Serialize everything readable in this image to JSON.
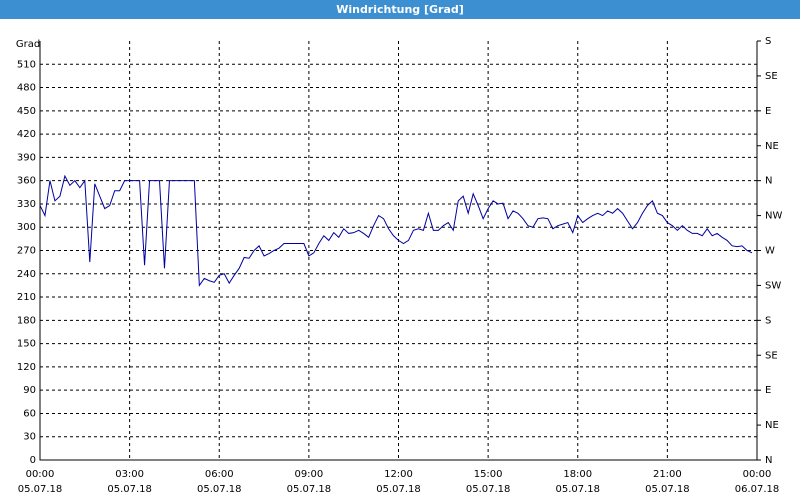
{
  "chart_data": {
    "type": "line",
    "title": "Windrichtung [Grad]",
    "y_label": "Grad",
    "xlim": [
      0,
      1440
    ],
    "xticks": [
      {
        "value": 0,
        "label": "00:00",
        "date": "05.07.18"
      },
      {
        "value": 180,
        "label": "03:00",
        "date": "05.07.18"
      },
      {
        "value": 360,
        "label": "06:00",
        "date": "05.07.18"
      },
      {
        "value": 540,
        "label": "09:00",
        "date": "05.07.18"
      },
      {
        "value": 720,
        "label": "12:00",
        "date": "05.07.18"
      },
      {
        "value": 900,
        "label": "15:00",
        "date": "05.07.18"
      },
      {
        "value": 1080,
        "label": "18:00",
        "date": "05.07.18"
      },
      {
        "value": 1260,
        "label": "21:00",
        "date": "05.07.18"
      },
      {
        "value": 1440,
        "label": "00:00",
        "date": "06.07.18"
      }
    ],
    "ylim": [
      0,
      540
    ],
    "yticks": [
      0,
      30,
      60,
      90,
      120,
      150,
      180,
      210,
      240,
      270,
      300,
      330,
      360,
      390,
      420,
      450,
      480,
      510
    ],
    "y2lim": [
      0,
      540
    ],
    "y2ticks": [
      {
        "value": 0,
        "label": "N"
      },
      {
        "value": 45,
        "label": "NE"
      },
      {
        "value": 90,
        "label": "E"
      },
      {
        "value": 135,
        "label": "SE"
      },
      {
        "value": 180,
        "label": "S"
      },
      {
        "value": 225,
        "label": "SW"
      },
      {
        "value": 270,
        "label": "W"
      },
      {
        "value": 315,
        "label": "NW"
      },
      {
        "value": 360,
        "label": "N"
      },
      {
        "value": 405,
        "label": "NE"
      },
      {
        "value": 450,
        "label": "E"
      },
      {
        "value": 495,
        "label": "SE"
      },
      {
        "value": 540,
        "label": "S"
      }
    ],
    "grid": true,
    "x": [
      0,
      10,
      20,
      30,
      40,
      50,
      60,
      70,
      80,
      90,
      100,
      110,
      120,
      130,
      140,
      150,
      160,
      170,
      180,
      190,
      200,
      210,
      220,
      230,
      240,
      250,
      260,
      270,
      280,
      290,
      300,
      310,
      320,
      330,
      340,
      350,
      360,
      370,
      380,
      390,
      400,
      410,
      420,
      430,
      440,
      450,
      460,
      470,
      480,
      490,
      500,
      510,
      520,
      530,
      540,
      550,
      560,
      570,
      580,
      590,
      600,
      610,
      620,
      630,
      640,
      650,
      660,
      670,
      680,
      690,
      700,
      710,
      720,
      730,
      740,
      750,
      760,
      770,
      780,
      790,
      800,
      810,
      820,
      830,
      840,
      850,
      860,
      870,
      880,
      890,
      900,
      910,
      920,
      930,
      940,
      950,
      960,
      970,
      980,
      990,
      1000,
      1010,
      1020,
      1030,
      1040,
      1050,
      1060,
      1070,
      1080,
      1090,
      1100,
      1110,
      1120,
      1130,
      1140,
      1150,
      1160,
      1170,
      1180,
      1190,
      1200,
      1210,
      1220,
      1230,
      1240,
      1250,
      1260,
      1270,
      1280,
      1290,
      1300,
      1310,
      1320,
      1330,
      1340,
      1350,
      1360,
      1370,
      1380,
      1390,
      1400,
      1410,
      1420,
      1430
    ],
    "series": [
      {
        "color": "#0000a0",
        "values": [
          328,
          315,
          360,
          334,
          340,
          366,
          354,
          360,
          351,
          360,
          255,
          356,
          340,
          324,
          328,
          347,
          347,
          360,
          360,
          360,
          360,
          251,
          360,
          360,
          360,
          247,
          360,
          360,
          360,
          360,
          360,
          360,
          225,
          234,
          231,
          229,
          238,
          240,
          228,
          238,
          247,
          261,
          260,
          270,
          276,
          263,
          266,
          270,
          273,
          279,
          279,
          279,
          279,
          279,
          263,
          267,
          279,
          289,
          283,
          293,
          287,
          298,
          292,
          293,
          296,
          292,
          287,
          302,
          315,
          311,
          298,
          289,
          283,
          279,
          283,
          296,
          298,
          296,
          318,
          296,
          296,
          302,
          306,
          296,
          334,
          340,
          318,
          343,
          328,
          311,
          324,
          334,
          330,
          331,
          311,
          321,
          318,
          311,
          302,
          300,
          311,
          312,
          311,
          298,
          302,
          304,
          306,
          293,
          315,
          306,
          311,
          315,
          318,
          315,
          321,
          318,
          324,
          318,
          308,
          298,
          306,
          318,
          328,
          334,
          318,
          315,
          306,
          302,
          296,
          302,
          296,
          292,
          292,
          289,
          298,
          289,
          292,
          287,
          283,
          276,
          275,
          276,
          270,
          267
        ]
      }
    ]
  }
}
